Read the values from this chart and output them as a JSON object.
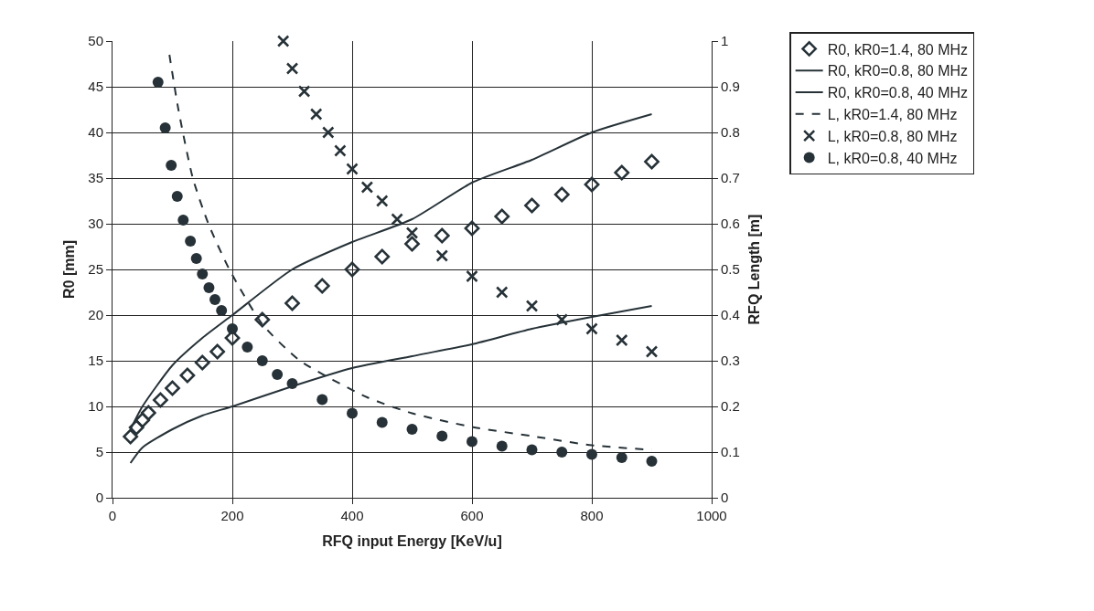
{
  "chart_data": {
    "type": "line",
    "xlabel": "RFQ input Energy [KeV/u]",
    "ylabel": "R0 [mm]",
    "y2label": "RFQ Length [m]",
    "xlim": [
      0,
      1000
    ],
    "xticks": [
      0,
      200,
      400,
      600,
      800,
      1000
    ],
    "ylim": [
      0,
      50
    ],
    "yticks": [
      0,
      5,
      10,
      15,
      20,
      25,
      30,
      35,
      40,
      45,
      50
    ],
    "y2lim": [
      0,
      1
    ],
    "y2ticks": [
      0,
      0.1,
      0.2,
      0.3,
      0.4,
      0.5,
      0.6,
      0.7,
      0.8,
      0.9,
      1
    ],
    "grid": true,
    "legend": "top right",
    "series": [
      {
        "name": "R0, kR0=1.4, 80 MHz",
        "type": "scatter",
        "marker": "diamond",
        "color": "#263238",
        "x": [
          30,
          40,
          50,
          60,
          80,
          100,
          125,
          150,
          175,
          200,
          250,
          300,
          350,
          400,
          450,
          500,
          550,
          600,
          650,
          700,
          750,
          800,
          850,
          900
        ],
        "values": [
          6.7,
          7.7,
          8.5,
          9.3,
          10.7,
          12,
          13.4,
          14.8,
          16,
          17.5,
          19.5,
          21.3,
          23.2,
          25,
          26.4,
          27.8,
          28.7,
          29.5,
          30.8,
          32,
          33.2,
          34.3,
          35.6,
          36.8
        ]
      },
      {
        "name": "R0, kR0=0.8, 80 MHz",
        "line_style": "solid",
        "color": "#263238",
        "x": [
          30,
          50,
          100,
          150,
          200,
          300,
          400,
          500,
          600,
          700,
          800,
          900
        ],
        "values": [
          3.8,
          5.5,
          7.5,
          9,
          10,
          12.2,
          14.2,
          15.5,
          16.8,
          18.5,
          19.8,
          21
        ]
      },
      {
        "name": "R0, kR0=0.8, 40 MHz",
        "line_style": "solid",
        "color": "#263238",
        "x": [
          30,
          50,
          100,
          150,
          200,
          300,
          400,
          500,
          600,
          700,
          800,
          900
        ],
        "values": [
          7.5,
          10,
          14.5,
          17.5,
          20,
          25,
          28,
          30.5,
          34.5,
          37,
          40,
          42
        ]
      },
      {
        "name": "L, kR0=1.4, 80 MHz",
        "line_style": "dashed",
        "axis": "y2",
        "color": "#263238",
        "x": [
          95,
          110,
          134,
          160,
          195,
          250,
          313,
          425,
          500,
          600,
          700,
          800,
          900
        ],
        "values": [
          0.97,
          0.85,
          0.7,
          0.6,
          0.5,
          0.38,
          0.3,
          0.22,
          0.185,
          0.155,
          0.135,
          0.115,
          0.105
        ]
      },
      {
        "name": "L, kR0=0.8, 80 MHz",
        "type": "scatter",
        "marker": "cross",
        "axis": "y2",
        "color": "#263238",
        "x": [
          285,
          300,
          320,
          340,
          360,
          380,
          400,
          425,
          450,
          475,
          500,
          550,
          600,
          650,
          700,
          750,
          800,
          850,
          900
        ],
        "values": [
          1.0,
          0.94,
          0.89,
          0.84,
          0.8,
          0.76,
          0.72,
          0.68,
          0.65,
          0.61,
          0.58,
          0.53,
          0.485,
          0.45,
          0.42,
          0.39,
          0.37,
          0.345,
          0.32
        ]
      },
      {
        "name": "L, kR0=0.8, 40 MHz",
        "type": "scatter",
        "marker": "circle",
        "axis": "y2",
        "color": "#263238",
        "x": [
          76,
          88,
          98,
          108,
          118,
          130,
          140,
          150,
          161,
          171,
          182,
          200,
          225,
          250,
          275,
          300,
          350,
          400,
          450,
          500,
          550,
          600,
          650,
          700,
          750,
          800,
          850,
          900
        ],
        "values": [
          0.91,
          0.81,
          0.728,
          0.66,
          0.608,
          0.562,
          0.524,
          0.49,
          0.46,
          0.434,
          0.41,
          0.37,
          0.33,
          0.3,
          0.27,
          0.25,
          0.215,
          0.185,
          0.165,
          0.15,
          0.135,
          0.123,
          0.113,
          0.105,
          0.1,
          0.095,
          0.088,
          0.08
        ]
      }
    ]
  }
}
